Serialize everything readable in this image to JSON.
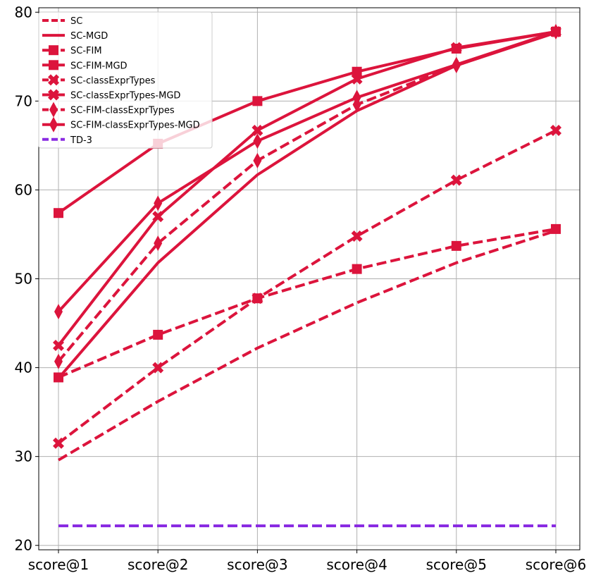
{
  "chart_data": {
    "type": "line",
    "title": "",
    "xlabel": "",
    "ylabel": "",
    "categories": [
      "score@1",
      "score@2",
      "score@3",
      "score@4",
      "score@5",
      "score@6"
    ],
    "ylim": [
      19.5,
      80.5
    ],
    "yticks": [
      20,
      30,
      40,
      50,
      60,
      70,
      80
    ],
    "grid": true,
    "legend_position": "top-left",
    "series": [
      {
        "name": "SC",
        "color": "#dc143c",
        "dash": "dashed",
        "marker": "none",
        "values": [
          29.6,
          36.2,
          42.2,
          47.3,
          51.8,
          55.4
        ]
      },
      {
        "name": "SC-MGD",
        "color": "#dc143c",
        "dash": "solid",
        "marker": "none",
        "values": [
          38.8,
          51.8,
          61.7,
          68.9,
          74.0,
          77.7
        ]
      },
      {
        "name": "SC-FIM",
        "color": "#dc143c",
        "dash": "dashed",
        "marker": "square",
        "values": [
          38.9,
          43.7,
          47.8,
          51.1,
          53.7,
          55.6
        ]
      },
      {
        "name": "SC-FIM-MGD",
        "color": "#dc143c",
        "dash": "solid",
        "marker": "square",
        "values": [
          57.4,
          65.2,
          70.0,
          73.3,
          75.9,
          77.8
        ]
      },
      {
        "name": "SC-classExprTypes",
        "color": "#dc143c",
        "dash": "dashed",
        "marker": "x",
        "values": [
          31.5,
          40.0,
          47.8,
          54.8,
          61.1,
          66.7
        ]
      },
      {
        "name": "SC-classExprTypes-MGD",
        "color": "#dc143c",
        "dash": "solid",
        "marker": "x",
        "values": [
          42.5,
          57.0,
          66.7,
          72.5,
          76.0,
          77.8
        ]
      },
      {
        "name": "SC-FIM-classExprTypes",
        "color": "#dc143c",
        "dash": "dashed",
        "marker": "diamond",
        "values": [
          40.7,
          54.0,
          63.3,
          69.6,
          74.0,
          77.8
        ]
      },
      {
        "name": "SC-FIM-classExprTypes-MGD",
        "color": "#dc143c",
        "dash": "solid",
        "marker": "diamond",
        "values": [
          46.3,
          58.5,
          65.5,
          70.4,
          74.1,
          77.8
        ]
      },
      {
        "name": "TD-3",
        "color": "#8a2be2",
        "dash": "dashed",
        "marker": "none",
        "values": [
          22.2,
          22.2,
          22.2,
          22.2,
          22.2,
          22.2
        ]
      }
    ]
  }
}
